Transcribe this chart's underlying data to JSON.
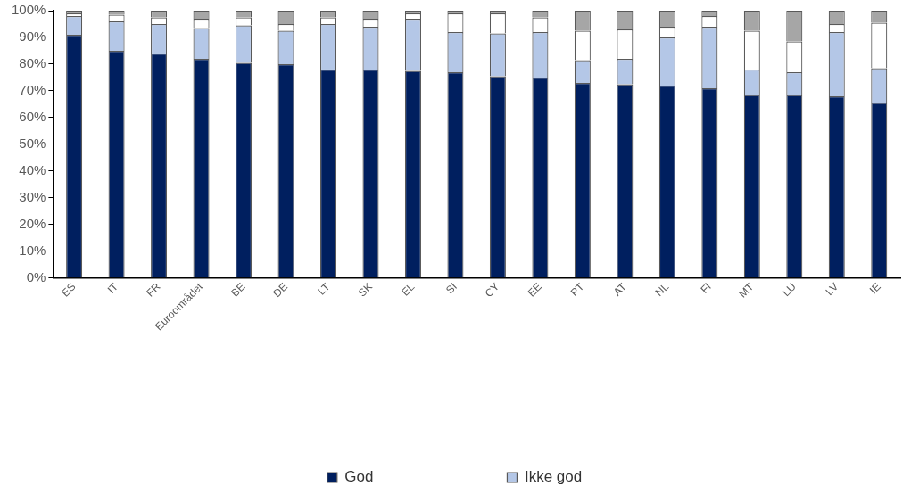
{
  "chart_data": {
    "type": "bar",
    "stacked": true,
    "grid": false,
    "legend": "bottom",
    "categories": [
      "ES",
      "IT",
      "FR",
      "Euroområdet",
      "BE",
      "DE",
      "LT",
      "SK",
      "EL",
      "SI",
      "CY",
      "EE",
      "PT",
      "AT",
      "NL",
      "FI",
      "MT",
      "LU",
      "LV",
      "IE"
    ],
    "series": [
      {
        "name": "God",
        "color": "#001f5f",
        "values": [
          91,
          85,
          84,
          82,
          80.5,
          80,
          78,
          78,
          77.5,
          77,
          75.5,
          75,
          73,
          72.5,
          72,
          71,
          68.5,
          68.5,
          68,
          65.5
        ]
      },
      {
        "name": "Ikke god",
        "color": "#b4c7e7",
        "values": [
          7,
          11,
          11,
          11.5,
          14,
          12.5,
          17,
          16,
          19.5,
          15,
          16,
          17,
          8.5,
          9.5,
          18,
          23,
          9.5,
          8.5,
          24,
          13
        ]
      },
      {
        "color": "#ffffff",
        "values": [
          1,
          2.5,
          2.5,
          3.5,
          3,
          2.5,
          2.5,
          3,
          2,
          7,
          7.5,
          5.5,
          11,
          11,
          4,
          4,
          14.5,
          11.5,
          3,
          17
        ]
      },
      {
        "color": "#a6a6a6",
        "values": [
          1,
          1.5,
          2.5,
          3,
          2.5,
          5,
          2.5,
          3,
          1,
          1,
          1,
          2.5,
          7.5,
          7,
          6,
          2,
          7.5,
          11.5,
          5,
          4.5
        ]
      }
    ],
    "ylim": [
      0,
      100
    ],
    "yticks": [
      {
        "value": 0,
        "label": "0%"
      },
      {
        "value": 10,
        "label": "10%"
      },
      {
        "value": 20,
        "label": "20%"
      },
      {
        "value": 30,
        "label": "30%"
      },
      {
        "value": 40,
        "label": "40%"
      },
      {
        "value": 50,
        "label": "50%"
      },
      {
        "value": 60,
        "label": "60%"
      },
      {
        "value": 70,
        "label": "70%"
      },
      {
        "value": 80,
        "label": "80%"
      },
      {
        "value": 90,
        "label": "90%"
      },
      {
        "value": 100,
        "label": "100%"
      }
    ]
  }
}
